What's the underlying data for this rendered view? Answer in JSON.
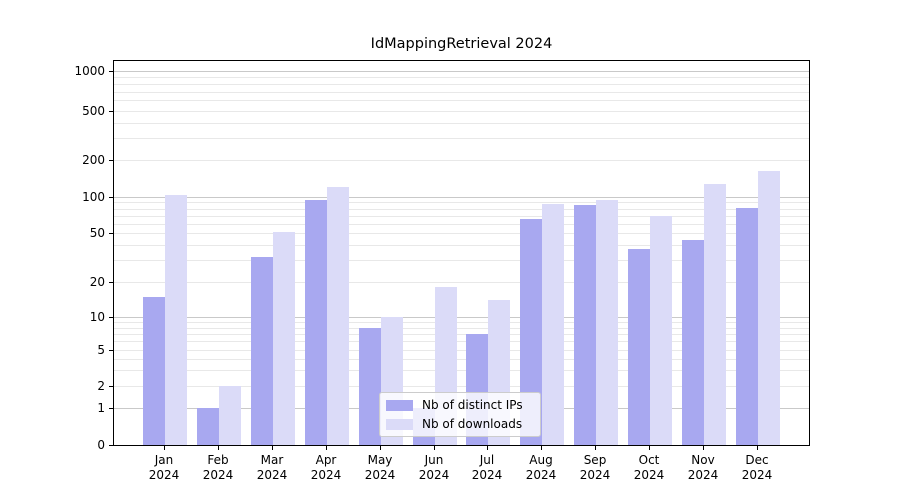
{
  "title": "IdMappingRetrieval 2024",
  "chart_data": {
    "type": "bar",
    "title": "IdMappingRetrieval 2024",
    "categories": [
      "Jan 2024",
      "Feb 2024",
      "Mar 2024",
      "Apr 2024",
      "May 2024",
      "Jun 2024",
      "Jul 2024",
      "Aug 2024",
      "Sep 2024",
      "Oct 2024",
      "Nov 2024",
      "Dec 2024"
    ],
    "series": [
      {
        "name": "Nb of distinct IPs",
        "color": "#a8a8f0",
        "values": [
          15,
          1,
          32,
          95,
          8,
          1,
          7,
          65,
          85,
          37,
          44,
          81
        ]
      },
      {
        "name": "Nb of downloads",
        "color": "#dbdbf8",
        "values": [
          103,
          2,
          51,
          120,
          10,
          18,
          14,
          87,
          95,
          70,
          128,
          163
        ]
      }
    ],
    "ylabel": "",
    "xlabel": "",
    "yscale": "log-with-zero",
    "yticks": [
      0,
      1,
      2,
      5,
      10,
      20,
      50,
      100,
      200,
      500,
      1000
    ],
    "ylim": [
      0,
      1300
    ],
    "grid": "horizontal major and log-minor gridlines",
    "legend_position": "lower center"
  },
  "colors": {
    "bar_distinct_ips": "#a8a8f0",
    "bar_downloads": "#dbdbf8",
    "major_grid": "#c9c9c9",
    "minor_grid": "#e8e8e8",
    "axis": "#000000",
    "background": "#ffffff"
  }
}
